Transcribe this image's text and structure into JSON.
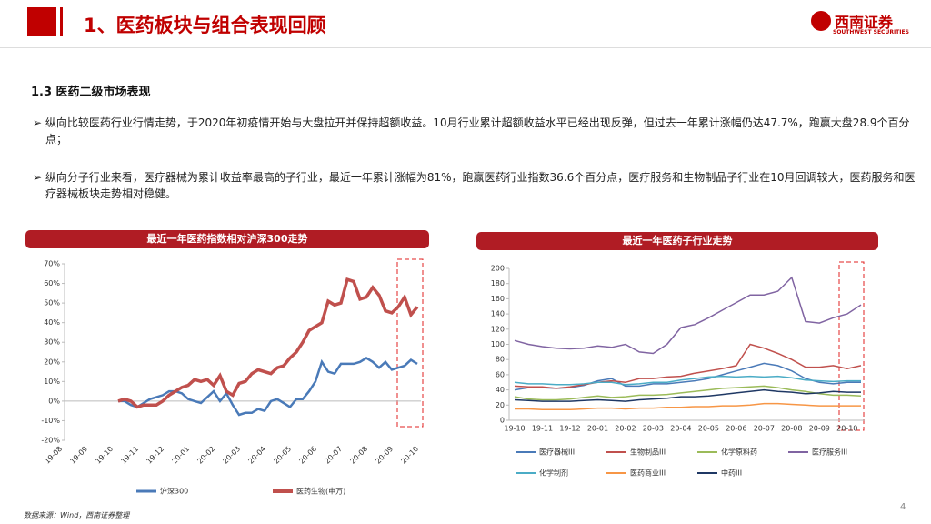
{
  "header": {
    "title": "1、医药板块与组合表现回顾",
    "logo": "西南证券",
    "logo_sub": "SOUTHWEST SECURITIES"
  },
  "section": "1.3 医药二级市场表现",
  "bullets": [
    "纵向比较医药行业行情走势，于2020年初疫情开始与大盘拉开并保持超额收益。10月行业累计超额收益水平已经出现反弹，但过去一年累计涨幅仍达47.7%，跑赢大盘28.9个百分点；",
    "纵向分子行业来看，医疗器械为累计收益率最高的子行业，最近一年累计涨幅为81%，跑赢医药行业指数36.6个百分点，医疗服务和生物制品子行业在10月回调较大，医药服务和医疗器械板块走势相对稳健。"
  ],
  "chart_data": [
    {
      "type": "line",
      "title": "最近一年医药指数相对沪深300走势",
      "categories": [
        "19-08",
        null,
        null,
        null,
        "19-09",
        null,
        null,
        null,
        "19-10",
        null,
        null,
        null,
        "19-11",
        null,
        null,
        null,
        "19-12",
        null,
        null,
        null,
        "20-01",
        null,
        null,
        null,
        "20-02",
        null,
        null,
        null,
        "20-03",
        null,
        null,
        null,
        "20-04",
        null,
        null,
        null,
        "20-05",
        null,
        null,
        null,
        "20-06",
        null,
        null,
        null,
        "20-07",
        null,
        null,
        null,
        "20-08",
        null,
        null,
        null,
        "20-09",
        null,
        null,
        null,
        "20-10"
      ],
      "series": [
        {
          "name": "沪深300",
          "color": "#4a7ab8",
          "values": [
            null,
            null,
            null,
            null,
            null,
            null,
            null,
            null,
            null,
            0,
            0,
            -2,
            -3,
            -1,
            1,
            2,
            3,
            5,
            5,
            4,
            1,
            0,
            -1,
            2,
            5,
            0,
            4,
            -2,
            -7,
            -6,
            -6,
            -4,
            -5,
            0,
            1,
            -1,
            -3,
            1,
            1,
            5,
            10,
            20,
            15,
            14,
            19,
            19,
            19,
            20,
            22,
            20,
            17,
            20,
            16,
            17,
            18,
            21,
            19
          ]
        },
        {
          "name": "医药生物(申万)",
          "color": "#c0504d",
          "values": [
            null,
            null,
            null,
            null,
            null,
            null,
            null,
            null,
            null,
            0,
            1,
            0,
            -3,
            -2,
            -2,
            -2,
            0,
            3,
            5,
            7,
            8,
            11,
            10,
            11,
            8,
            13,
            5,
            3,
            9,
            10,
            14,
            16,
            15,
            14,
            17,
            18,
            22,
            25,
            30,
            36,
            38,
            40,
            51,
            49,
            50,
            62,
            61,
            52,
            53,
            58,
            54,
            46,
            45,
            48,
            53,
            44,
            48
          ]
        }
      ],
      "ylim": [
        -20,
        70
      ],
      "yticks": [
        {
          "value": -20,
          "label": "-20%"
        },
        {
          "value": -10,
          "label": "-10%"
        },
        {
          "value": 0,
          "label": "0%"
        },
        {
          "value": 10,
          "label": "10%"
        },
        {
          "value": 20,
          "label": "20%"
        },
        {
          "value": 30,
          "label": "30%"
        },
        {
          "value": 40,
          "label": "40%"
        },
        {
          "value": 50,
          "label": "50%"
        },
        {
          "value": 60,
          "label": "60%"
        },
        {
          "value": 70,
          "label": "70%"
        }
      ],
      "grid": false
    },
    {
      "type": "line",
      "title": "最近一年医药子行业走势",
      "categories": [
        "19-10",
        null,
        "19-11",
        null,
        "19-12",
        null,
        "20-01",
        null,
        "20-02",
        null,
        "20-03",
        null,
        "20-04",
        null,
        "20-05",
        null,
        "20-06",
        null,
        "20-07",
        null,
        "20-08",
        null,
        "20-09",
        null,
        "20-10",
        null
      ],
      "series": [
        {
          "name": "医疗器械III",
          "color": "#4a7ab8",
          "values": [
            40,
            43,
            43,
            42,
            43,
            46,
            52,
            55,
            45,
            45,
            48,
            48,
            50,
            52,
            55,
            60,
            65,
            70,
            75,
            72,
            65,
            55,
            50,
            48,
            50,
            50
          ]
        },
        {
          "name": "生物制品III",
          "color": "#c0504d",
          "values": [
            45,
            44,
            44,
            42,
            44,
            47,
            50,
            52,
            50,
            55,
            55,
            57,
            58,
            62,
            65,
            68,
            72,
            100,
            95,
            88,
            80,
            70,
            70,
            72,
            68,
            72
          ]
        },
        {
          "name": "化学原料药",
          "color": "#9bbb59",
          "values": [
            31,
            28,
            27,
            27,
            28,
            30,
            32,
            30,
            31,
            33,
            33,
            34,
            36,
            38,
            40,
            42,
            43,
            44,
            45,
            43,
            40,
            38,
            35,
            33,
            33,
            32
          ]
        },
        {
          "name": "医疗服务III",
          "color": "#8064a2",
          "values": [
            105,
            100,
            97,
            95,
            94,
            95,
            98,
            96,
            100,
            90,
            88,
            100,
            122,
            126,
            135,
            145,
            155,
            165,
            165,
            170,
            188,
            130,
            128,
            135,
            140,
            152
          ]
        },
        {
          "name": "化学制剂",
          "color": "#4bacc6",
          "values": [
            50,
            48,
            48,
            47,
            47,
            48,
            50,
            50,
            47,
            48,
            50,
            50,
            53,
            55,
            57,
            58,
            57,
            58,
            57,
            58,
            56,
            53,
            52,
            51,
            52,
            52
          ]
        },
        {
          "name": "医药商业III",
          "color": "#f79646",
          "values": [
            15,
            15,
            14,
            14,
            14,
            15,
            16,
            16,
            15,
            16,
            16,
            17,
            17,
            18,
            18,
            19,
            19,
            20,
            22,
            22,
            21,
            20,
            19,
            19,
            19,
            19
          ]
        },
        {
          "name": "中药III",
          "color": "#1f3864",
          "values": [
            27,
            26,
            25,
            25,
            25,
            26,
            27,
            26,
            25,
            27,
            28,
            29,
            31,
            31,
            32,
            34,
            36,
            38,
            40,
            38,
            37,
            35,
            36,
            38,
            37,
            37
          ]
        }
      ],
      "ylim": [
        0,
        200
      ],
      "yticks": [
        0,
        20,
        40,
        60,
        80,
        100,
        120,
        140,
        160,
        180,
        200
      ],
      "grid": false
    }
  ],
  "source": "数据来源：Wind，西南证券整理",
  "page": "4"
}
